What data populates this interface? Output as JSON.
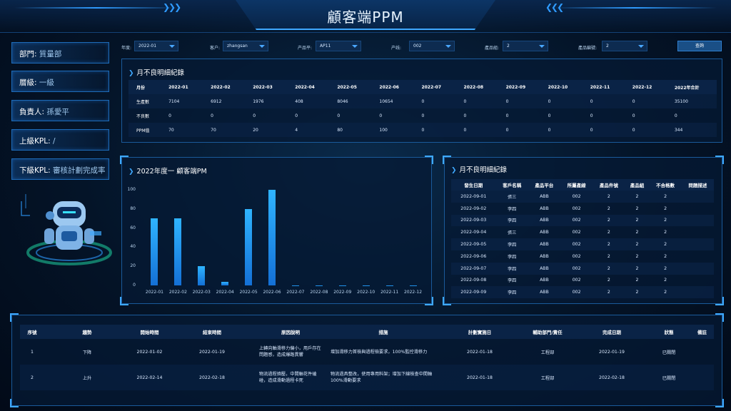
{
  "header": {
    "title": "顧客端PPM"
  },
  "side": [
    {
      "label": "部門:",
      "value": "質量部"
    },
    {
      "label": "層級:",
      "value": "一級"
    },
    {
      "label": "負責人:",
      "value": "孫愛平"
    },
    {
      "label": "上級KPL:",
      "value": "/"
    },
    {
      "label": "下級KPL:",
      "value": "審核計劃完成率"
    }
  ],
  "filters": {
    "year_label": "年度:",
    "year_value": "2022-01",
    "customer_label": "客户:",
    "customer_value": "zhangsan",
    "platform_label": "产品平:",
    "platform_value": "AP11",
    "line_label": "产线:",
    "line_value": "002",
    "group_label": "產品組:",
    "group_value": "2",
    "code_label": "產品編號:",
    "code_value": "2",
    "query_label": "查詢"
  },
  "monthly_table": {
    "title": "月不良明細紀錄",
    "headers": [
      "月份",
      "2022-01",
      "2022-02",
      "2022-03",
      "2022-04",
      "2022-05",
      "2022-06",
      "2022-07",
      "2022-08",
      "2022-09",
      "2022-10",
      "2022-11",
      "2022-12",
      "2022年合計"
    ],
    "rows": [
      [
        "生產數",
        "7104",
        "6912",
        "1976",
        "408",
        "8046",
        "10654",
        "0",
        "0",
        "0",
        "0",
        "0",
        "0",
        "35100"
      ],
      [
        "不良數",
        "0",
        "0",
        "0",
        "0",
        "0",
        "0",
        "0",
        "0",
        "0",
        "0",
        "0",
        "0",
        "0"
      ],
      [
        "PPM值",
        "70",
        "70",
        "20",
        "4",
        "80",
        "100",
        "0",
        "0",
        "0",
        "0",
        "0",
        "0",
        "344"
      ]
    ]
  },
  "chart_panel": {
    "title": "2022年度一 顧客端PM"
  },
  "chart_data": {
    "type": "bar",
    "categories": [
      "2022-01",
      "2022-02",
      "2022-03",
      "2022-04",
      "2022-05",
      "2022-06",
      "2022-07",
      "2022-08",
      "2022-09",
      "2022-10",
      "2022-11",
      "2022-12"
    ],
    "values": [
      70,
      70,
      20,
      4,
      80,
      100,
      0,
      0,
      0,
      0,
      0,
      0
    ],
    "yticks": [
      "0",
      "20",
      "40",
      "60",
      "80",
      "100"
    ],
    "ylim": [
      0,
      100
    ],
    "title": "2022年度一 顧客端PM",
    "xlabel": "",
    "ylabel": "",
    "grid": false
  },
  "detail_table": {
    "title": "月不良明細紀錄",
    "headers": [
      "發生日期",
      "客戶名稱",
      "產品平台",
      "所屬產線",
      "產品件號",
      "產品組",
      "不合格數",
      "問題描述"
    ],
    "rows": [
      [
        "2022-09-01",
        "張三",
        "ABB",
        "002",
        "2",
        "2",
        "2",
        ""
      ],
      [
        "2022-09-02",
        "李四",
        "ABB",
        "002",
        "2",
        "2",
        "2",
        ""
      ],
      [
        "2022-09-03",
        "李四",
        "ABB",
        "002",
        "2",
        "2",
        "2",
        ""
      ],
      [
        "2022-09-04",
        "張三",
        "ABB",
        "002",
        "2",
        "2",
        "2",
        ""
      ],
      [
        "2022-09-05",
        "李四",
        "ABB",
        "002",
        "2",
        "2",
        "2",
        ""
      ],
      [
        "2022-09-06",
        "李四",
        "ABB",
        "002",
        "2",
        "2",
        "2",
        ""
      ],
      [
        "2022-09-07",
        "李四",
        "ABB",
        "002",
        "2",
        "2",
        "2",
        ""
      ],
      [
        "2022-09-08",
        "李四",
        "ABB",
        "002",
        "2",
        "2",
        "2",
        ""
      ],
      [
        "2022-09-09",
        "李四",
        "ABB",
        "002",
        "2",
        "2",
        "2",
        ""
      ]
    ]
  },
  "action_table": {
    "headers": [
      "序號",
      "趨勢",
      "開始時間",
      "結束時間",
      "原因說明",
      "措施",
      "計劃實施日",
      "輔助部門/責任",
      "完成日期",
      "狀態",
      "備註"
    ],
    "rows": [
      [
        "1",
        "下降",
        "2022-01-02",
        "2022-01-19",
        "上轉向軸滑移力偏小，用戶存在問題感，造成爆路異響",
        "增加滑移力首檢與過程檢要求，100%監控滑移力",
        "2022-01-18",
        "工程部",
        "2022-01-19",
        "已關閉",
        ""
      ],
      [
        "2",
        "上升",
        "2022-02-14",
        "2022-02-18",
        "物流過程擠壓，中間軸花件磕碰，造成滑動過程卡死",
        "物流過具整改，使用專用料架；增加下線檢查中間軸100%滑動要求",
        "2022-01-18",
        "工程部",
        "2022-02-18",
        "已關閉",
        ""
      ]
    ]
  }
}
